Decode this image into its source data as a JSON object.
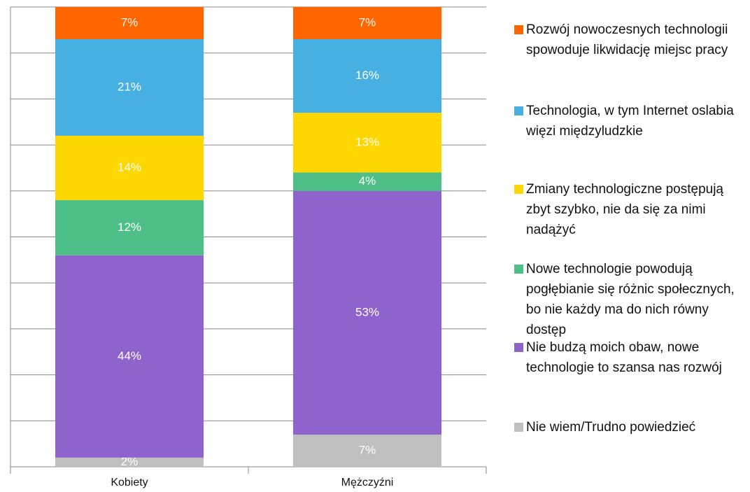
{
  "chart_data": {
    "type": "stacked_bar",
    "categories": [
      "Kobiety",
      "Mężczyźni"
    ],
    "series": [
      {
        "name": "Nie wiem/Trudno powiedzieć",
        "color": "#bfbfbf",
        "values": [
          2,
          7
        ],
        "value_labels": [
          "2%",
          "7%"
        ]
      },
      {
        "name": "Nie budzą moich obaw, nowe technologie to szansa nas rozwój",
        "color": "#8e63cc",
        "values": [
          44,
          53
        ],
        "value_labels": [
          "44%",
          "53%"
        ]
      },
      {
        "name": "Nowe technologie powodują pogłębianie się różnic społecznych, bo nie każdy ma do nich równy dostęp",
        "color": "#4dbf87",
        "values": [
          12,
          4
        ],
        "value_labels": [
          "12%",
          "4%"
        ]
      },
      {
        "name": "Zmiany technologiczne postępują zbyt szybko, nie da się za nimi nadążyć",
        "color": "#ffd700",
        "values": [
          14,
          13
        ],
        "value_labels": [
          "14%",
          "13%"
        ]
      },
      {
        "name": "Technologia, w tym Internet oslabia więzi międzyludzkie",
        "color": "#47b0e3",
        "values": [
          21,
          16
        ],
        "value_labels": [
          "21%",
          "16%"
        ]
      },
      {
        "name": "Rozwój nowoczesnych technologii spowoduje likwidację miejsc pracy",
        "color": "#ff6600",
        "values": [
          7,
          7
        ],
        "value_labels": [
          "7%",
          "7%"
        ]
      }
    ],
    "ylim": [
      0,
      100
    ],
    "yticks": [
      0,
      10,
      20,
      30,
      40,
      50,
      60,
      70,
      80,
      90,
      100
    ],
    "grid": true,
    "legend": "right"
  }
}
